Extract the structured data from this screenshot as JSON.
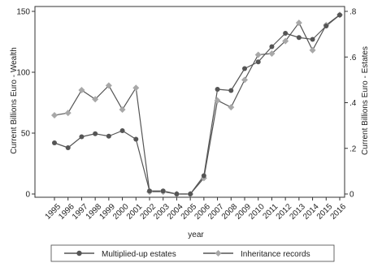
{
  "chart_data": {
    "type": "line",
    "title": "",
    "xlabel": "year",
    "ylabel": "Current Billions Euro - Wealth",
    "y2label": "Current Billions Euro - Estates",
    "categories": [
      "1995",
      "1996",
      "1997",
      "1998",
      "1999",
      "2000",
      "2001",
      "2002",
      "2003",
      "2004",
      "2005",
      "2006",
      "2007",
      "2008",
      "2009",
      "2010",
      "2011",
      "2012",
      "2013",
      "2014",
      "2015",
      "2016"
    ],
    "ylim": [
      0,
      150
    ],
    "y_ticks": [
      0,
      50,
      100,
      150
    ],
    "y2lim": [
      0,
      0.8
    ],
    "y2_ticks": [
      0,
      0.2,
      0.4,
      0.6,
      0.8
    ],
    "y2_tick_labels": [
      "0",
      ".2",
      ".4",
      ".6",
      ".8"
    ],
    "grid": false,
    "legend_position": "bottom",
    "series": [
      {
        "name": "Multiplied-up estates",
        "axis": "left",
        "color": "#555555",
        "marker": "circle",
        "values": [
          42,
          38,
          47,
          49.5,
          47.5,
          52,
          45,
          2.5,
          2.5,
          0,
          0,
          15,
          86,
          85,
          103,
          108.5,
          121,
          132,
          128.5,
          127,
          138,
          147
        ]
      },
      {
        "name": "Inheritance records",
        "axis": "right",
        "color": "#a8a8a8",
        "marker": "diamond",
        "values": [
          0.345,
          0.355,
          0.455,
          0.415,
          0.475,
          0.37,
          0.465,
          0.01,
          0.01,
          0,
          0,
          0.07,
          0.41,
          0.38,
          0.5,
          0.61,
          0.615,
          0.67,
          0.75,
          0.63,
          0.74,
          0.785
        ]
      }
    ]
  }
}
